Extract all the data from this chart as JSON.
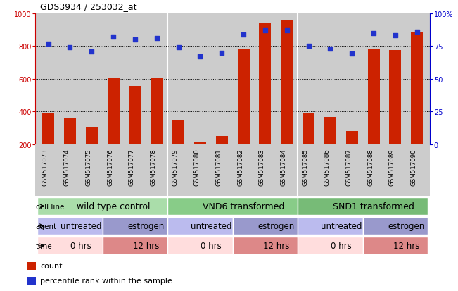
{
  "title": "GDS3934 / 253032_at",
  "samples": [
    "GSM517073",
    "GSM517074",
    "GSM517075",
    "GSM517076",
    "GSM517077",
    "GSM517078",
    "GSM517079",
    "GSM517080",
    "GSM517081",
    "GSM517082",
    "GSM517083",
    "GSM517084",
    "GSM517085",
    "GSM517086",
    "GSM517087",
    "GSM517088",
    "GSM517089",
    "GSM517090"
  ],
  "counts": [
    390,
    360,
    305,
    605,
    558,
    608,
    345,
    215,
    252,
    785,
    945,
    955,
    390,
    365,
    282,
    785,
    775,
    882
  ],
  "percentiles": [
    77,
    74,
    71,
    82,
    80,
    81,
    74,
    67,
    70,
    84,
    87,
    87,
    75,
    73,
    69,
    85,
    83,
    86
  ],
  "bar_color": "#cc2200",
  "dot_color": "#2233cc",
  "ylim_left": [
    200,
    1000
  ],
  "ylim_right": [
    0,
    100
  ],
  "yticks_left": [
    200,
    400,
    600,
    800,
    1000
  ],
  "yticks_right": [
    0,
    25,
    50,
    75,
    100
  ],
  "ytick_labels_right": [
    "0",
    "25",
    "50",
    "75",
    "100%"
  ],
  "grid_values": [
    400,
    600,
    800
  ],
  "cell_line_groups": [
    {
      "label": "wild type control",
      "start": 0,
      "end": 6,
      "color": "#aaddaa"
    },
    {
      "label": "VND6 transformed",
      "start": 6,
      "end": 12,
      "color": "#88cc88"
    },
    {
      "label": "SND1 transformed",
      "start": 12,
      "end": 18,
      "color": "#77bb77"
    }
  ],
  "agent_groups": [
    {
      "label": "untreated",
      "start": 0,
      "end": 3,
      "color": "#bbbbee"
    },
    {
      "label": "estrogen",
      "start": 3,
      "end": 6,
      "color": "#9999cc"
    },
    {
      "label": "untreated",
      "start": 6,
      "end": 9,
      "color": "#bbbbee"
    },
    {
      "label": "estrogen",
      "start": 9,
      "end": 12,
      "color": "#9999cc"
    },
    {
      "label": "untreated",
      "start": 12,
      "end": 15,
      "color": "#bbbbee"
    },
    {
      "label": "estrogen",
      "start": 15,
      "end": 18,
      "color": "#9999cc"
    }
  ],
  "time_groups": [
    {
      "label": "0 hrs",
      "start": 0,
      "end": 3,
      "color": "#ffdddd"
    },
    {
      "label": "12 hrs",
      "start": 3,
      "end": 6,
      "color": "#dd8888"
    },
    {
      "label": "0 hrs",
      "start": 6,
      "end": 9,
      "color": "#ffdddd"
    },
    {
      "label": "12 hrs",
      "start": 9,
      "end": 12,
      "color": "#dd8888"
    },
    {
      "label": "0 hrs",
      "start": 12,
      "end": 15,
      "color": "#ffdddd"
    },
    {
      "label": "12 hrs",
      "start": 15,
      "end": 18,
      "color": "#dd8888"
    }
  ],
  "legend_items": [
    {
      "color": "#cc2200",
      "label": "count"
    },
    {
      "color": "#2233cc",
      "label": "percentile rank within the sample"
    }
  ],
  "bg_color": "#cccccc",
  "left_axis_color": "#cc0000",
  "right_axis_color": "#0000cc"
}
